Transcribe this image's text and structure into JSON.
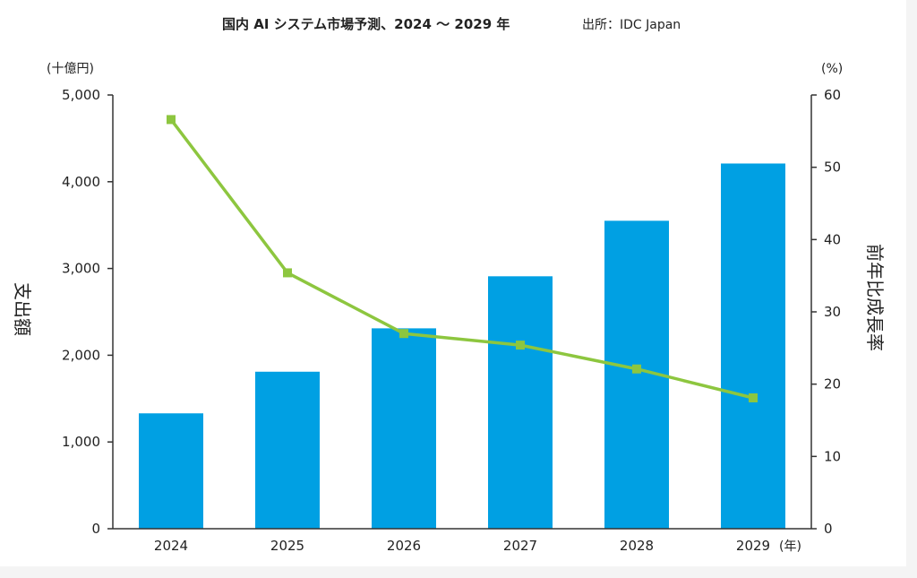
{
  "colors": {
    "bar": "#00a0e3",
    "line": "#8dc63f",
    "axis": "#333333",
    "background": "#ffffff",
    "page": "#f4f4f4"
  },
  "chart_data": {
    "type": "bar",
    "title": "国内 AI システム市場予測、2024 〜 2029 年",
    "source": "出所：IDC Japan",
    "categories": [
      "2024",
      "2025",
      "2026",
      "2027",
      "2028",
      "2029"
    ],
    "x_unit": "(年)",
    "y_left": {
      "label": "支出額",
      "unit": "(十億円)",
      "range": [
        0,
        5000
      ],
      "ticks": [
        "0",
        "1,000",
        "2,000",
        "3,000",
        "4,000",
        "5,000"
      ]
    },
    "y_right": {
      "label": "前年比成長率",
      "unit": "(%)",
      "range": [
        0,
        60
      ],
      "ticks": [
        "0",
        "10",
        "20",
        "30",
        "40",
        "50",
        "60"
      ]
    },
    "series": [
      {
        "type": "bar",
        "axis": "left",
        "values": [
          1330,
          1810,
          2310,
          2910,
          3550,
          4210
        ]
      },
      {
        "type": "line",
        "axis": "right",
        "values": [
          56.6,
          35.4,
          27.0,
          25.4,
          22.1,
          18.1
        ]
      }
    ],
    "grid": false,
    "legend": "none"
  }
}
